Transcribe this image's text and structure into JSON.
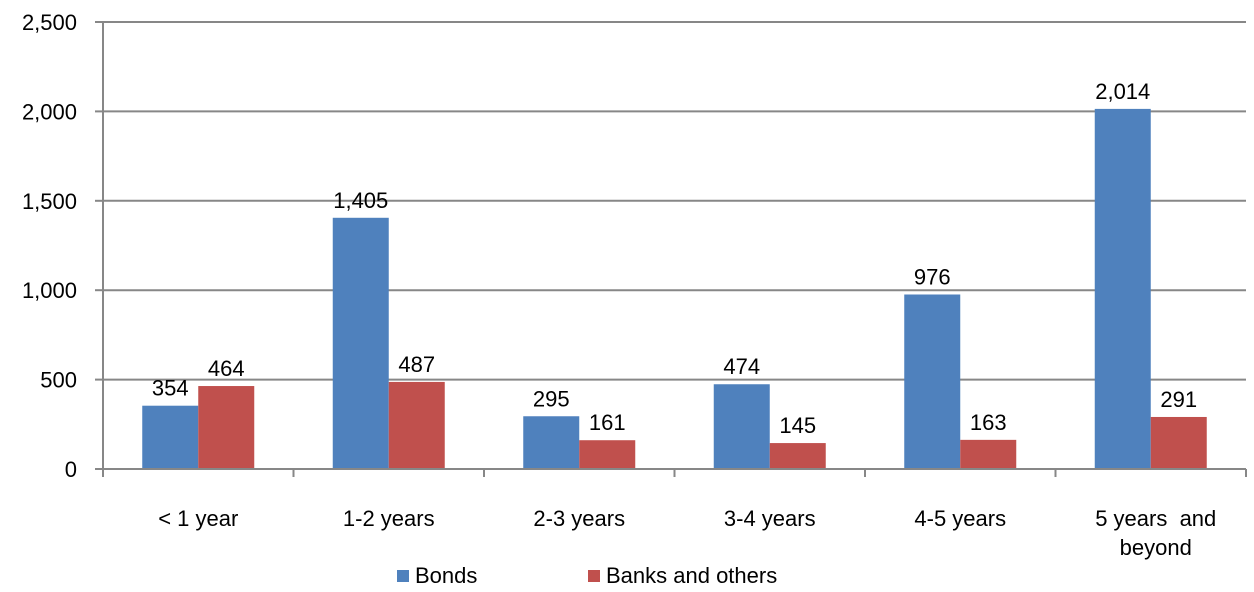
{
  "chart_data": {
    "type": "bar",
    "categories": [
      "< 1 year",
      "1-2 years",
      "2-3 years",
      "3-4 years",
      "4-5 years",
      "5 years and beyond"
    ],
    "category_lines": [
      [
        "< 1 year"
      ],
      [
        "1-2 years"
      ],
      [
        "2-3 years"
      ],
      [
        "3-4 years"
      ],
      [
        "4-5 years"
      ],
      [
        "5 years  and",
        "beyond"
      ]
    ],
    "series": [
      {
        "name": "Bonds",
        "color": "#4F81BD",
        "values": [
          354,
          1405,
          295,
          474,
          976,
          2014
        ]
      },
      {
        "name": "Banks and others",
        "color": "#C0504D",
        "values": [
          464,
          487,
          161,
          145,
          163,
          291
        ]
      }
    ],
    "value_labels": [
      [
        "354",
        "1,405",
        "295",
        "474",
        "976",
        "2,014"
      ],
      [
        "464",
        "487",
        "161",
        "145",
        "163",
        "291"
      ]
    ],
    "ylim": [
      0,
      2500
    ],
    "yticks": [
      0,
      500,
      1000,
      1500,
      2000,
      2500
    ],
    "ytick_labels": [
      "0",
      "500",
      "1,000",
      "1,500",
      "2,000",
      "2,500"
    ],
    "grid": true,
    "legend_position": "bottom"
  }
}
